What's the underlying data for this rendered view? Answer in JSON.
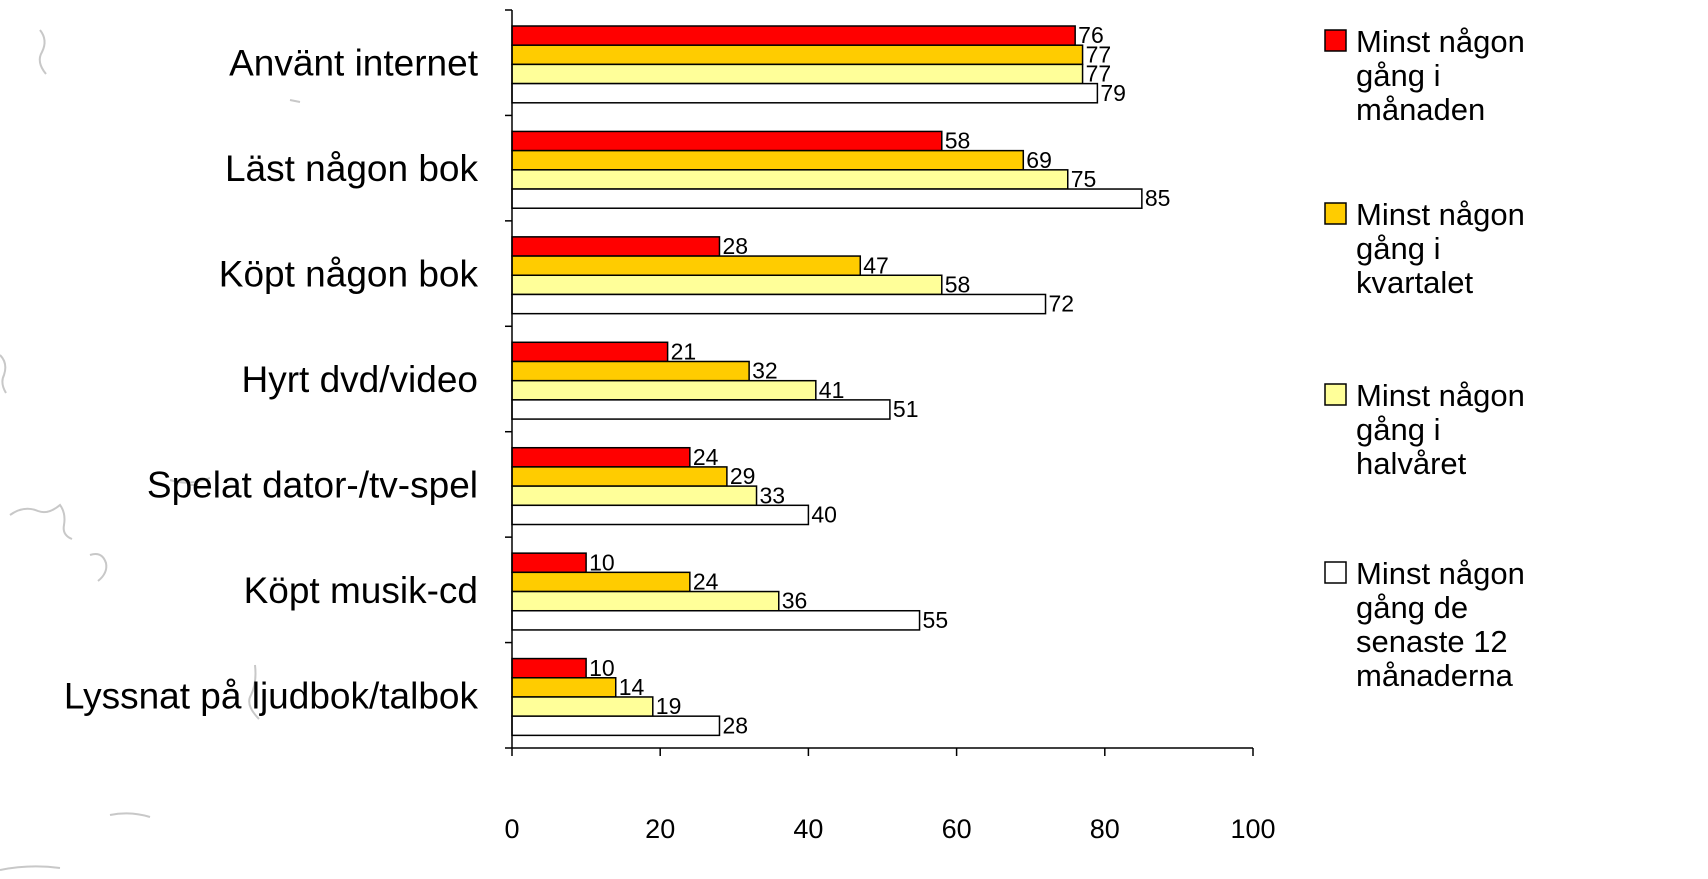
{
  "chart_data": {
    "type": "bar",
    "orientation": "horizontal",
    "categories": [
      "Använt internet",
      "Läst någon bok",
      "Köpt någon bok",
      "Hyrt dvd/video",
      "Spelat dator-/tv-spel",
      "Köpt musik-cd",
      "Lyssnat på ljudbok/talbok"
    ],
    "series": [
      {
        "name": "Minst någon gång i månaden",
        "legend_lines": [
          "Minst någon",
          "gång i",
          "månaden"
        ],
        "color": "#ff0000",
        "values": [
          76,
          58,
          28,
          21,
          24,
          10,
          10
        ]
      },
      {
        "name": "Minst någon gång i kvartalet",
        "legend_lines": [
          "Minst någon",
          "gång i",
          "kvartalet"
        ],
        "color": "#ffcc00",
        "values": [
          77,
          69,
          47,
          32,
          29,
          24,
          14
        ]
      },
      {
        "name": "Minst någon gång i halvåret",
        "legend_lines": [
          "Minst någon",
          "gång i",
          "halvåret"
        ],
        "color": "#ffff99",
        "values": [
          77,
          75,
          58,
          41,
          33,
          36,
          19
        ]
      },
      {
        "name": "Minst någon gång de senaste 12 månaderna",
        "legend_lines": [
          "Minst någon",
          "gång de",
          "senaste 12",
          "månaderna"
        ],
        "color": "#ffffff",
        "values": [
          79,
          85,
          72,
          51,
          40,
          55,
          28
        ]
      }
    ],
    "xlim": [
      0,
      100
    ],
    "xticks": [
      0,
      20,
      40,
      60,
      80,
      100
    ],
    "title": "",
    "xlabel": "",
    "ylabel": "",
    "grid": false,
    "data_labels": true,
    "legend_position": "right"
  }
}
